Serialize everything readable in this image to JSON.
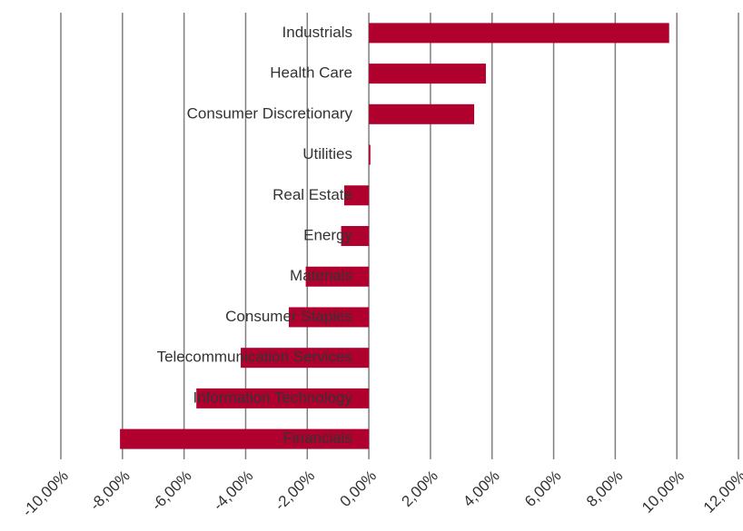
{
  "chart_data": {
    "type": "hbar",
    "categories": [
      "Industrials",
      "Health Care",
      "Consumer Discretionary",
      "Utilities",
      "Real Estate",
      "Energy",
      "Materials",
      "Consumer Staples",
      "Telecommunication Services",
      "Information Technology",
      "Financials"
    ],
    "values": [
      9.75,
      3.8,
      3.42,
      0.05,
      -0.8,
      -0.9,
      -2.05,
      -2.6,
      -4.16,
      -5.6,
      -8.08
    ],
    "color": "#b0002e",
    "xlim": [
      -10,
      12
    ],
    "xticks": [
      {
        "value": -10,
        "label": "-10,00%"
      },
      {
        "value": -8,
        "label": "-8,00%"
      },
      {
        "value": -6,
        "label": "-6,00%"
      },
      {
        "value": -4,
        "label": "-4,00%"
      },
      {
        "value": -2,
        "label": "-2,00%"
      },
      {
        "value": 0,
        "label": "0,00%"
      },
      {
        "value": 2,
        "label": "2,00%"
      },
      {
        "value": 4,
        "label": "4,00%"
      },
      {
        "value": 6,
        "label": "6,00%"
      },
      {
        "value": 8,
        "label": "8,00%"
      },
      {
        "value": 10,
        "label": "10,00%"
      },
      {
        "value": 12,
        "label": "12,00%"
      }
    ],
    "grid": true
  }
}
